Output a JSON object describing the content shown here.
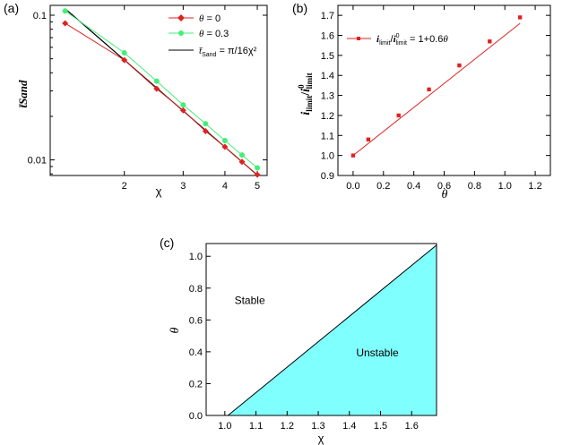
{
  "chart_data": [
    {
      "panel": "(a)",
      "type": "line",
      "xlabel": "χ",
      "ylabel": "t̄Sand",
      "xscale": "log",
      "yscale": "log",
      "xlim": [
        1.2,
        5.35
      ],
      "ylim": [
        0.0078,
        0.117
      ],
      "xticks": [
        {
          "v": 2,
          "label": "2"
        },
        {
          "v": 3,
          "label": "3"
        },
        {
          "v": 4,
          "label": "4"
        },
        {
          "v": 5,
          "label": "5"
        }
      ],
      "yticks": [
        {
          "v": 0.01,
          "label": "0.01"
        },
        {
          "v": 0.1,
          "label": "0.1"
        }
      ],
      "legend_position": "top-right",
      "series": [
        {
          "name_prefix": "θ",
          "name_suffix": " = 0",
          "color": "#dd2222",
          "marker": "diamond",
          "x": [
            1.33,
            2.0,
            2.5,
            3.0,
            3.5,
            4.0,
            4.5,
            5.0
          ],
          "y": [
            0.088,
            0.049,
            0.031,
            0.022,
            0.0158,
            0.0123,
            0.0097,
            0.0079
          ]
        },
        {
          "name_prefix": "θ",
          "name_suffix": " = 0.3",
          "color": "#44ee77",
          "marker": "circle",
          "x": [
            1.33,
            2.0,
            2.5,
            3.0,
            3.5,
            4.0,
            4.5,
            5.0
          ],
          "y": [
            0.107,
            0.055,
            0.035,
            0.024,
            0.0178,
            0.0136,
            0.0108,
            0.0088
          ]
        },
        {
          "name_main": "t̄",
          "name_sub": "Sand",
          "name_tail": " = π/16χ²",
          "color": "#000000",
          "marker": "none",
          "formula": "pi/16/x^2",
          "x_range": [
            1.33,
            5.0
          ]
        }
      ]
    },
    {
      "panel": "(b)",
      "type": "scatter",
      "xlabel": "θ",
      "ylabel_main1": "i",
      "ylabel_sub1": "limit",
      "ylabel_mid": "/",
      "ylabel_main2": "i",
      "ylabel_sub2": "limit",
      "ylabel_sup2": "0",
      "xlim": [
        -0.1,
        1.3
      ],
      "ylim": [
        0.9,
        1.75
      ],
      "xticks": [
        0.0,
        0.2,
        0.4,
        0.6,
        0.8,
        1.0,
        1.2
      ],
      "xtick_labels": [
        "0.0",
        "0.2",
        "0.4",
        "0.6",
        "0.8",
        "1.0",
        "1.2"
      ],
      "yticks": [
        0.9,
        1.0,
        1.1,
        1.2,
        1.3,
        1.4,
        1.5,
        1.6,
        1.7
      ],
      "ytick_labels": [
        "0.9",
        "1.0",
        "1.1",
        "1.2",
        "1.3",
        "1.4",
        "1.5",
        "1.6",
        "1.7"
      ],
      "legend_position": "top-left",
      "series": [
        {
          "name_main1": "i",
          "name_sub1": "limit",
          "name_mid": "/",
          "name_main2": "i",
          "name_sub2": "limit",
          "name_sup2": "0",
          "name_tail_pre": " = 1+0.6",
          "name_tail_var": "θ",
          "color": "#dd2222",
          "marker": "square",
          "x": [
            0.0,
            0.1,
            0.3,
            0.5,
            0.7,
            0.9,
            1.1
          ],
          "y": [
            1.0,
            1.08,
            1.2,
            1.33,
            1.45,
            1.57,
            1.69
          ],
          "fit_intercept": 1.0,
          "fit_slope": 0.6
        }
      ]
    },
    {
      "panel": "(c)",
      "type": "area",
      "xlabel": "χ",
      "ylabel": "θ",
      "xlim": [
        0.94,
        1.68
      ],
      "ylim": [
        0.0,
        1.08
      ],
      "xticks": [
        1.0,
        1.1,
        1.2,
        1.3,
        1.4,
        1.5,
        1.6
      ],
      "xtick_labels": [
        "1.0",
        "1.1",
        "1.2",
        "1.3",
        "1.4",
        "1.5",
        "1.6"
      ],
      "yticks": [
        0.0,
        0.2,
        0.4,
        0.6,
        0.8,
        1.0
      ],
      "ytick_labels": [
        "0.0",
        "0.2",
        "0.4",
        "0.6",
        "0.8",
        "1.0"
      ],
      "boundary": {
        "x": [
          1.01,
          1.68
        ],
        "y": [
          0.0,
          1.07
        ]
      },
      "fill_color": "#80ffff",
      "regions": [
        {
          "label": "Stable",
          "x": 1.08,
          "y": 0.7
        },
        {
          "label": "Unstable",
          "x": 1.49,
          "y": 0.37
        }
      ]
    }
  ]
}
